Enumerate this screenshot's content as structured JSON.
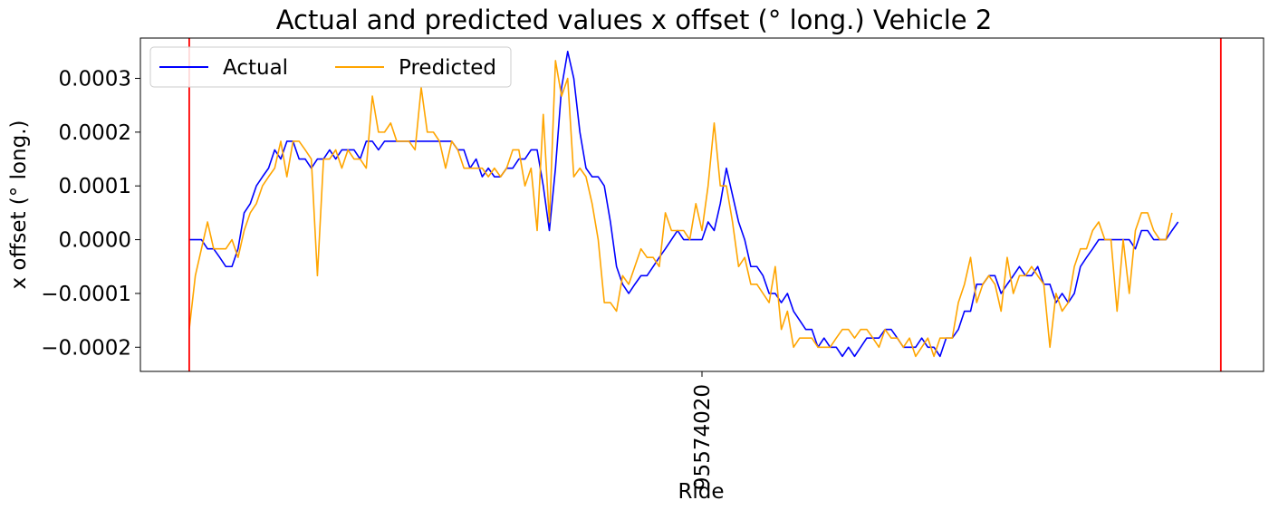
{
  "chart_data": {
    "type": "line",
    "title": "Actual and predicted values x offset (° long.) Vehicle 2",
    "xlabel": "Ride",
    "ylabel": "x offset (° long.)",
    "x_ticks": [
      "95574020"
    ],
    "y_ticks": [
      -0.0002,
      -0.0001,
      0.0,
      0.0001,
      0.0002,
      0.0003
    ],
    "y_tick_labels": [
      "−0.0002",
      "−0.0001",
      "0.0000",
      "0.0001",
      "0.0002",
      "0.0003"
    ],
    "ylim": [
      -0.000245,
      0.000375
    ],
    "xlim": [
      -8,
      176
    ],
    "x_tick_index": 84,
    "ride_boundaries": [
      0,
      169
    ],
    "grid": false,
    "legend_position": "top-left",
    "colors": {
      "actual": "#0000ff",
      "predicted": "#ffa500",
      "boundary": "#ff0000"
    },
    "series": [
      {
        "name": "Actual",
        "color": "#0000ff",
        "values": [
          0,
          0,
          0,
          -1.7e-05,
          -1.7e-05,
          -3.3e-05,
          -5e-05,
          -5e-05,
          -1.7e-05,
          5e-05,
          6.7e-05,
          0.0001,
          0.000117,
          0.000133,
          0.000167,
          0.00015,
          0.000183,
          0.000183,
          0.00015,
          0.00015,
          0.000133,
          0.00015,
          0.00015,
          0.000167,
          0.00015,
          0.000167,
          0.000167,
          0.000167,
          0.00015,
          0.000183,
          0.000183,
          0.000167,
          0.000183,
          0.000183,
          0.000183,
          0.000183,
          0.000183,
          0.000183,
          0.000183,
          0.000183,
          0.000183,
          0.000183,
          0.000183,
          0.000183,
          0.000167,
          0.000167,
          0.000133,
          0.00015,
          0.000117,
          0.000133,
          0.000117,
          0.000117,
          0.000133,
          0.000133,
          0.00015,
          0.00015,
          0.000167,
          0.000167,
          0.0001,
          1.7e-05,
          0.000133,
          0.000283,
          0.00035,
          0.0003,
          0.0002,
          0.000133,
          0.000117,
          0.000117,
          0.0001,
          3.3e-05,
          -5e-05,
          -8.3e-05,
          -0.0001,
          -8.3e-05,
          -6.7e-05,
          -6.7e-05,
          -5e-05,
          -3.3e-05,
          -1.7e-05,
          0,
          1.7e-05,
          0,
          0,
          0,
          0,
          3.3e-05,
          1.7e-05,
          6.7e-05,
          0.000133,
          8.3e-05,
          3.3e-05,
          0,
          -5e-05,
          -5e-05,
          -6.7e-05,
          -0.0001,
          -0.0001,
          -0.000117,
          -0.0001,
          -0.000133,
          -0.00015,
          -0.000167,
          -0.000167,
          -0.0002,
          -0.000183,
          -0.0002,
          -0.0002,
          -0.000217,
          -0.0002,
          -0.000217,
          -0.0002,
          -0.000183,
          -0.000183,
          -0.000183,
          -0.000167,
          -0.000167,
          -0.000183,
          -0.0002,
          -0.0002,
          -0.0002,
          -0.000183,
          -0.0002,
          -0.0002,
          -0.000217,
          -0.000183,
          -0.000183,
          -0.000167,
          -0.000133,
          -0.000133,
          -8.3e-05,
          -8.3e-05,
          -6.7e-05,
          -6.7e-05,
          -0.0001,
          -8.3e-05,
          -6.7e-05,
          -5e-05,
          -6.7e-05,
          -6.7e-05,
          -5e-05,
          -8.3e-05,
          -8.3e-05,
          -0.000117,
          -0.0001,
          -0.000117,
          -0.0001,
          -5e-05,
          -3.3e-05,
          -1.7e-05,
          0,
          0,
          0,
          0,
          0,
          0,
          -1.7e-05,
          1.7e-05,
          1.7e-05,
          0,
          0,
          0,
          1.7e-05,
          3.3e-05
        ]
      },
      {
        "name": "Predicted",
        "color": "#ffa500",
        "values": [
          -0.000167,
          -6.7e-05,
          -1.7e-05,
          3.3e-05,
          -1.7e-05,
          -1.7e-05,
          -1.7e-05,
          0,
          -3.3e-05,
          1.7e-05,
          5e-05,
          6.7e-05,
          0.0001,
          0.000117,
          0.000133,
          0.000183,
          0.000117,
          0.000183,
          0.000183,
          0.000167,
          0.00015,
          -6.7e-05,
          0.00015,
          0.00015,
          0.000167,
          0.000133,
          0.000167,
          0.00015,
          0.00015,
          0.000133,
          0.000267,
          0.0002,
          0.0002,
          0.000217,
          0.000183,
          0.000183,
          0.000183,
          0.000167,
          0.000283,
          0.0002,
          0.0002,
          0.000183,
          0.000133,
          0.000183,
          0.000167,
          0.000133,
          0.000133,
          0.000133,
          0.000133,
          0.000117,
          0.000133,
          0.000117,
          0.000133,
          0.000167,
          0.000167,
          0.0001,
          0.000133,
          1.7e-05,
          0.000233,
          3.3e-05,
          0.000333,
          0.000267,
          0.0003,
          0.000117,
          0.000133,
          0.000117,
          6.7e-05,
          0,
          -0.000117,
          -0.000117,
          -0.000133,
          -6.7e-05,
          -8.3e-05,
          -5e-05,
          -1.7e-05,
          -3.3e-05,
          -3.3e-05,
          -5e-05,
          5e-05,
          1.7e-05,
          1.7e-05,
          1.7e-05,
          0,
          6.7e-05,
          1.7e-05,
          0.0001,
          0.000217,
          0.0001,
          0.0001,
          3.3e-05,
          -5e-05,
          -3.3e-05,
          -8.3e-05,
          -8.3e-05,
          -0.0001,
          -0.000117,
          -5e-05,
          -0.000167,
          -0.000133,
          -0.0002,
          -0.000183,
          -0.000183,
          -0.000183,
          -0.0002,
          -0.0002,
          -0.0002,
          -0.000183,
          -0.000167,
          -0.000167,
          -0.000183,
          -0.000167,
          -0.000167,
          -0.000183,
          -0.0002,
          -0.000167,
          -0.000183,
          -0.000183,
          -0.0002,
          -0.000183,
          -0.000217,
          -0.0002,
          -0.000183,
          -0.000217,
          -0.000183,
          -0.000183,
          -0.000183,
          -0.000117,
          -8.3e-05,
          -3.3e-05,
          -0.000117,
          -8.3e-05,
          -6.7e-05,
          -8.3e-05,
          -0.000133,
          -3.3e-05,
          -0.0001,
          -6.7e-05,
          -6.7e-05,
          -5e-05,
          -6.7e-05,
          -8.3e-05,
          -0.0002,
          -0.0001,
          -0.000133,
          -0.000117,
          -5e-05,
          -1.7e-05,
          -1.7e-05,
          1.7e-05,
          3.3e-05,
          0,
          0,
          -0.000133,
          0,
          -0.0001,
          1.7e-05,
          5e-05,
          5e-05,
          1.7e-05,
          0,
          0,
          5e-05
        ]
      }
    ]
  }
}
